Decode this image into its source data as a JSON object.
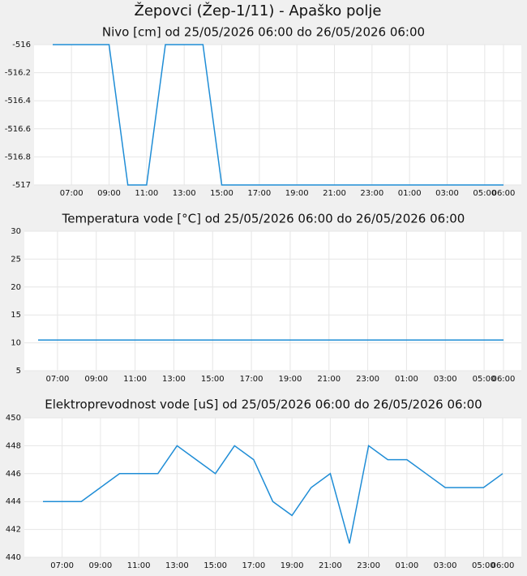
{
  "title": "Žepovci (Žep-1/11) - Apaško polje",
  "chart_data": [
    {
      "type": "line",
      "title": "Nivo [cm] od 25/05/2026 06:00 do 26/05/2026 06:00",
      "categories": [
        null,
        "07:00",
        null,
        "09:00",
        null,
        "11:00",
        null,
        "13:00",
        null,
        "15:00",
        null,
        "17:00",
        null,
        "19:00",
        null,
        "21:00",
        null,
        "23:00",
        null,
        "01:00",
        null,
        "03:00",
        null,
        "05:00",
        "06:00"
      ],
      "values": [
        -516,
        -516,
        -516,
        -516,
        -517,
        -517,
        -516,
        -516,
        -516,
        -517,
        -517,
        -517,
        -517,
        -517,
        -517,
        -517,
        -517,
        -517,
        -517,
        -517,
        -517,
        -517,
        -517,
        -517,
        -517
      ],
      "color": "#1f8dd6",
      "ylim": [
        -517,
        -516
      ],
      "yticks": [
        -517,
        -516.8,
        -516.6,
        -516.4,
        -516.2,
        -516
      ],
      "grid": true
    },
    {
      "type": "line",
      "title": "Temperatura vode [°C] od 25/05/2026 06:00 do 26/05/2026 06:00",
      "categories": [
        null,
        "07:00",
        null,
        "09:00",
        null,
        "11:00",
        null,
        "13:00",
        null,
        "15:00",
        null,
        "17:00",
        null,
        "19:00",
        null,
        "21:00",
        null,
        "23:00",
        null,
        "01:00",
        null,
        "03:00",
        null,
        "05:00",
        "06:00"
      ],
      "values": [
        10.5,
        10.5,
        10.5,
        10.5,
        10.5,
        10.5,
        10.5,
        10.5,
        10.5,
        10.5,
        10.5,
        10.5,
        10.5,
        10.5,
        10.5,
        10.5,
        10.5,
        10.5,
        10.5,
        10.5,
        10.5,
        10.5,
        10.5,
        10.5,
        10.5
      ],
      "color": "#1f8dd6",
      "ylim": [
        5,
        30
      ],
      "yticks": [
        5,
        10,
        15,
        20,
        25,
        30
      ],
      "grid": true
    },
    {
      "type": "line",
      "title": "Elektroprevodnost vode [uS] od 25/05/2026 06:00 do 26/05/2026 06:00",
      "categories": [
        null,
        "07:00",
        null,
        "09:00",
        null,
        "11:00",
        null,
        "13:00",
        null,
        "15:00",
        null,
        "17:00",
        null,
        "19:00",
        null,
        "21:00",
        null,
        "23:00",
        null,
        "01:00",
        null,
        "03:00",
        null,
        "05:00",
        "06:00"
      ],
      "values": [
        444,
        444,
        444,
        445,
        446,
        446,
        446,
        448,
        447,
        446,
        448,
        447,
        444,
        443,
        445,
        446,
        441,
        448,
        447,
        447,
        446,
        445,
        445,
        445,
        446
      ],
      "color": "#1f8dd6",
      "ylim": [
        440,
        450
      ],
      "yticks": [
        440,
        442,
        444,
        446,
        448,
        450
      ],
      "grid": true
    }
  ]
}
